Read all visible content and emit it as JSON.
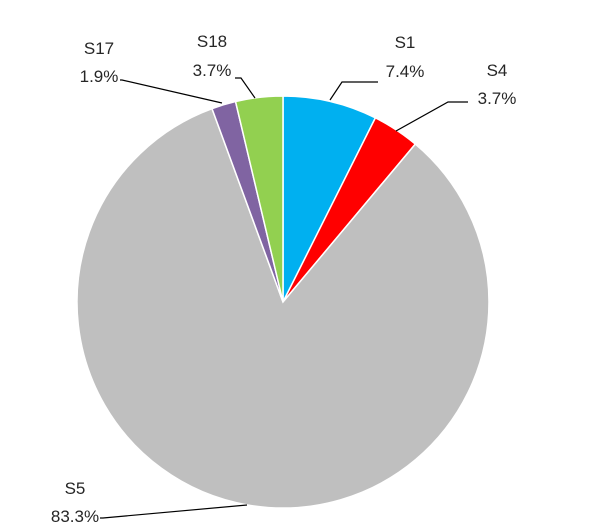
{
  "chart_data": {
    "type": "pie",
    "title": "",
    "slices": [
      {
        "name": "S1",
        "value": 7.4,
        "label": "7.4%",
        "color": "#00B0F0"
      },
      {
        "name": "S4",
        "value": 3.7,
        "label": "3.7%",
        "color": "#FF0000"
      },
      {
        "name": "S5",
        "value": 83.3,
        "label": "83.3%",
        "color": "#BFBFBF"
      },
      {
        "name": "S17",
        "value": 1.9,
        "label": "1.9%",
        "color": "#8064A2"
      },
      {
        "name": "S18",
        "value": 3.7,
        "label": "3.7%",
        "color": "#92D050"
      }
    ],
    "start_angle": "12 o'clock",
    "direction": "clockwise",
    "legend": "none"
  }
}
